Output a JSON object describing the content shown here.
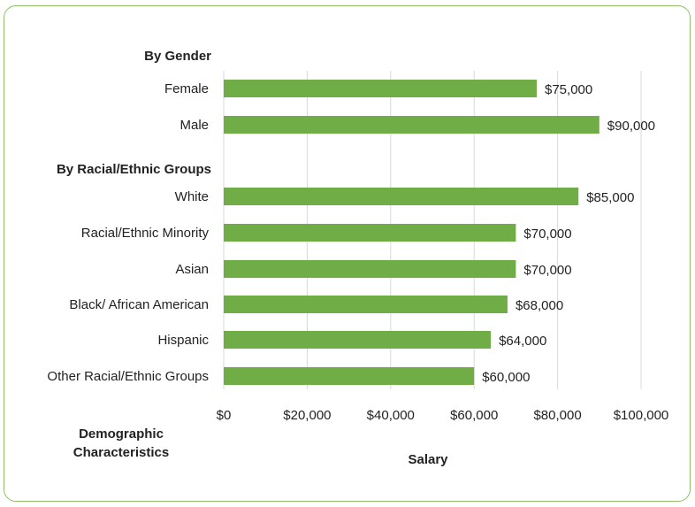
{
  "chart_data": {
    "type": "bar",
    "orientation": "horizontal",
    "groups": [
      {
        "label": "By Gender",
        "categories": [
          "Female",
          "Male"
        ],
        "values": [
          75000,
          90000
        ]
      },
      {
        "label": "By Racial/Ethnic Groups",
        "categories": [
          "White",
          "Racial/Ethnic Minority",
          "Asian",
          "Black/ African American",
          "Hispanic",
          "Other Racial/Ethnic Groups"
        ],
        "values": [
          85000,
          70000,
          70000,
          68000,
          64000,
          60000
        ]
      }
    ],
    "data_labels": {
      "Female": "$75,000",
      "Male": "$90,000",
      "White": "$85,000",
      "Racial/Ethnic Minority": "$70,000",
      "Asian": "$70,000",
      "Black/ African American": "$68,000",
      "Hispanic": "$64,000",
      "Other Racial/Ethnic Groups": "$60,000"
    },
    "xlim": [
      0,
      100000
    ],
    "xticks": [
      0,
      20000,
      40000,
      60000,
      80000,
      100000
    ],
    "xtick_labels": [
      "$0",
      "$20,000",
      "$40,000",
      "$60,000",
      "$80,000",
      "$100,000"
    ],
    "xlabel": "Salary",
    "ylabel": "Demographic Characteristics",
    "grid": "vertical",
    "bar_color": "#70AD47",
    "border_color": "#8FBF6A"
  }
}
